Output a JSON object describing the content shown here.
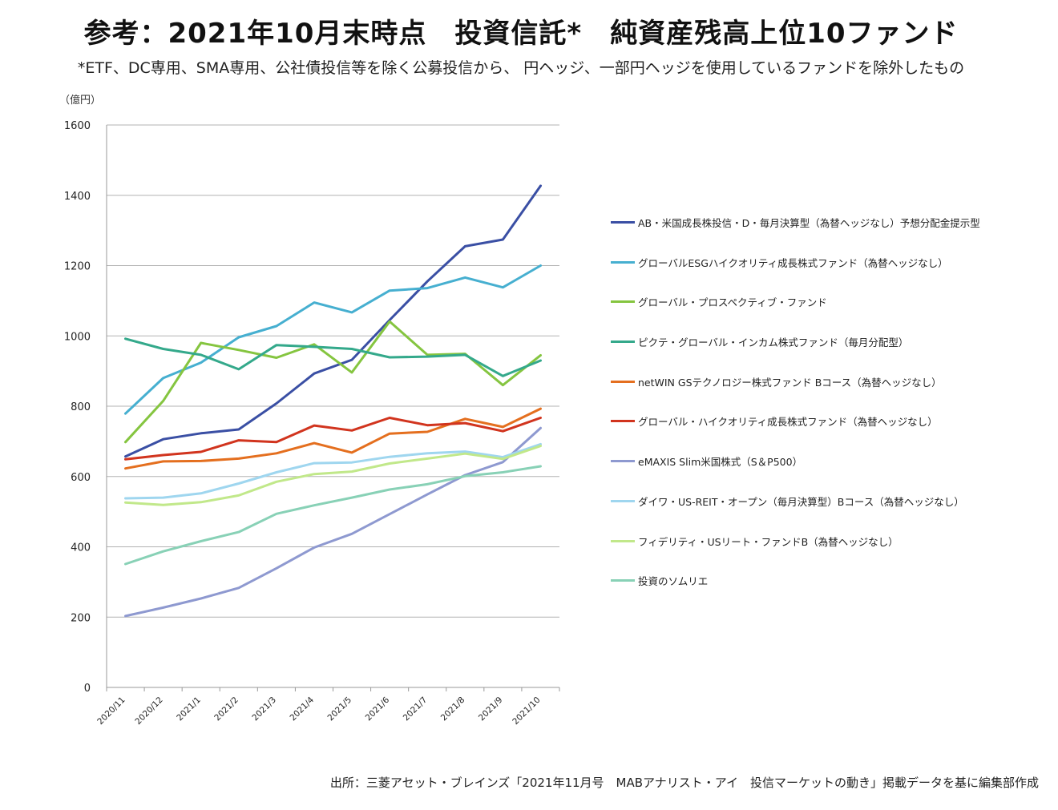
{
  "header": {
    "title": "参考：2021年10月末時点　投資信託*　純資産残高上位10ファンド",
    "subtitle": "*ETF、DC専用、SMA専用、公社債投信等を除く公募投信から、 円ヘッジ、一部円ヘッジを使用しているファンドを除外したもの"
  },
  "footer": {
    "source": "出所：三菱アセット・ブレインズ「2021年11月号　MABアナリスト・アイ　投信マーケットの動き」掲載データを基に編集部作成"
  },
  "chart_data": {
    "type": "line",
    "title": "参考：2021年10月末時点　投資信託*　純資産残高上位10ファンド",
    "unit_label": "（億円）",
    "ylim": [
      0,
      1600
    ],
    "yticks": [
      0,
      200,
      400,
      600,
      800,
      1000,
      1200,
      1400,
      1600
    ],
    "grid": true,
    "legend_position": "right",
    "categories": [
      "2020/11",
      "2020/12",
      "2021/1",
      "2021/2",
      "2021/3",
      "2021/4",
      "2021/5",
      "2021/6",
      "2021/7",
      "2021/8",
      "2021/9",
      "2021/10"
    ],
    "series": [
      {
        "name": "AB・米国成長株投信・D・毎月決算型（為替ヘッジなし）予想分配金提示型",
        "color": "#3a4fa4",
        "values": [
          657,
          706,
          723,
          734,
          808,
          893,
          932,
          1045,
          1155,
          1255,
          1274,
          1427
        ]
      },
      {
        "name": "グローバルESGハイクオリティ成長株式ファンド（為替ヘッジなし）",
        "color": "#46afd0",
        "values": [
          779,
          880,
          924,
          996,
          1028,
          1095,
          1067,
          1129,
          1136,
          1166,
          1138,
          1200
        ]
      },
      {
        "name": "グローバル・プロスペクティブ・ファンド",
        "color": "#85c540",
        "values": [
          698,
          815,
          980,
          960,
          938,
          976,
          896,
          1041,
          946,
          949,
          860,
          945
        ]
      },
      {
        "name": "ピクテ・グローバル・インカム株式ファンド（毎月分配型）",
        "color": "#34a98b",
        "values": [
          992,
          963,
          946,
          905,
          974,
          969,
          963,
          939,
          941,
          946,
          886,
          930
        ]
      },
      {
        "name": "netWIN GSテクノロジー株式ファンド Bコース（為替ヘッジなし）",
        "color": "#e46f1f",
        "values": [
          623,
          643,
          644,
          651,
          666,
          695,
          668,
          722,
          727,
          764,
          741,
          793
        ]
      },
      {
        "name": "グローバル・ハイクオリティ成長株式ファンド（為替ヘッジなし）",
        "color": "#d1341e",
        "values": [
          649,
          661,
          670,
          703,
          698,
          745,
          731,
          767,
          746,
          752,
          729,
          767
        ]
      },
      {
        "name": "eMAXIS Slim米国株式（S＆P500）",
        "color": "#8e99d0",
        "values": [
          203,
          227,
          253,
          283,
          339,
          398,
          437,
          493,
          549,
          604,
          641,
          738
        ]
      },
      {
        "name": "ダイワ・US-REIT・オープン（毎月決算型）Bコース（為替ヘッジなし）",
        "color": "#9fd6ef",
        "values": [
          538,
          540,
          552,
          580,
          612,
          638,
          640,
          656,
          666,
          671,
          655,
          692
        ]
      },
      {
        "name": "フィデリティ・USリート・ファンドB（為替ヘッジなし）",
        "color": "#c1e88a",
        "values": [
          526,
          519,
          527,
          546,
          585,
          607,
          614,
          637,
          651,
          665,
          650,
          687
        ]
      },
      {
        "name": "投資のソムリエ",
        "color": "#88d1b6",
        "values": [
          351,
          387,
          416,
          442,
          494,
          518,
          540,
          563,
          578,
          601,
          612,
          629
        ]
      }
    ]
  }
}
